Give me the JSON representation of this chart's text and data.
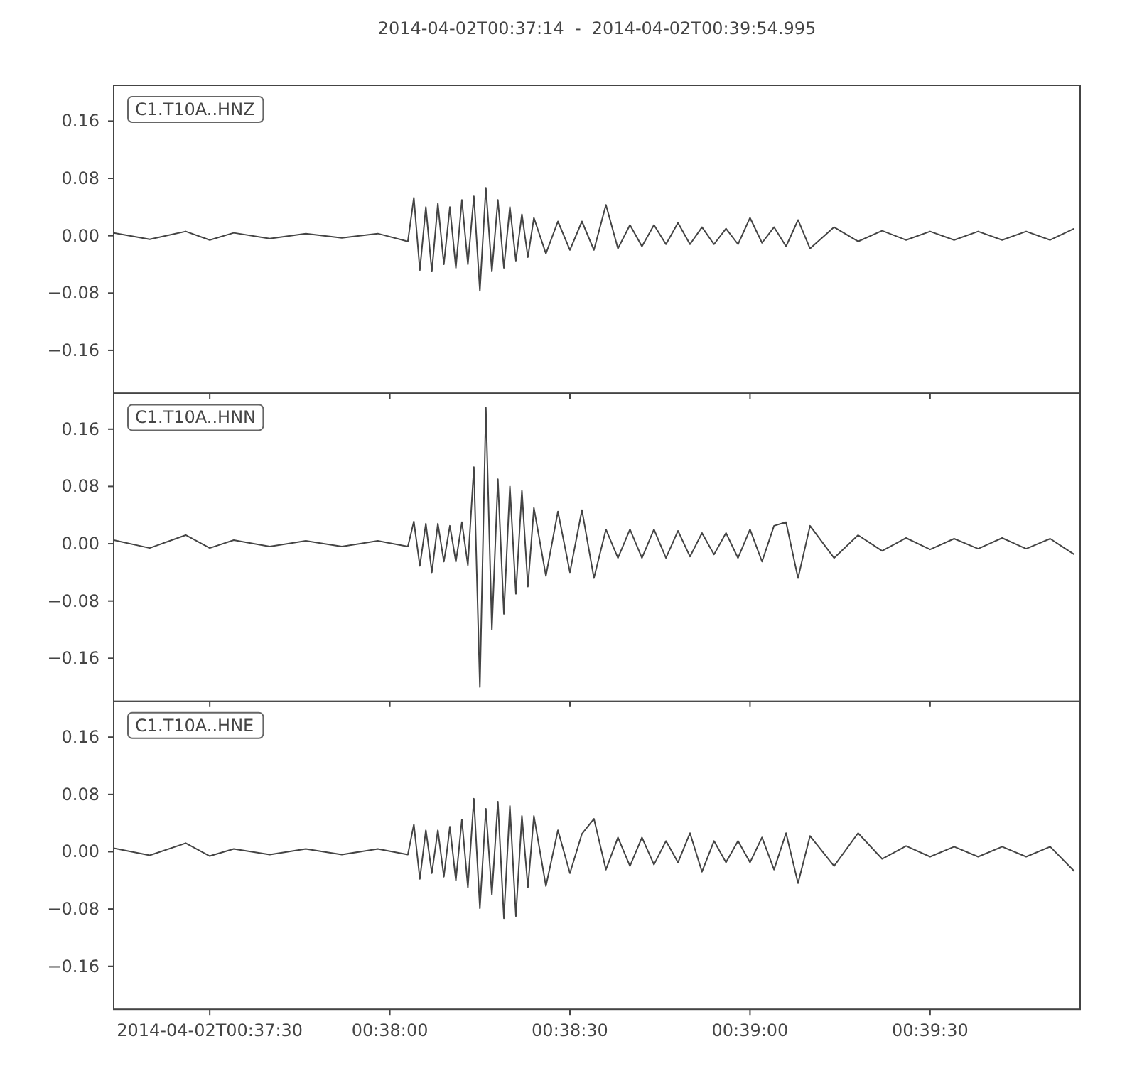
{
  "chart_data": [
    {
      "type": "line",
      "title": "2014-04-02T00:37:14  -  2014-04-02T00:39:54.995",
      "legend": "top left",
      "tick_labels": "y",
      "xlim": [
        "2014-04-02T00:37:14",
        "2014-04-02T00:39:54.995"
      ],
      "xticks": [
        {
          "value": "2014-04-02T00:37:30",
          "label": null
        },
        {
          "value": "2014-04-02T00:38:00",
          "label": null
        },
        {
          "value": "2014-04-02T00:38:30",
          "label": null
        },
        {
          "value": "2014-04-02T00:39:00",
          "label": null
        },
        {
          "value": "2014-04-02T00:39:30",
          "label": null
        }
      ],
      "ylim": [
        -0.22,
        0.21
      ],
      "yticks": [
        {
          "value": -0.16,
          "label": "−0.16"
        },
        {
          "value": -0.08,
          "label": "−0.08"
        },
        {
          "value": 0,
          "label": "0.00"
        },
        {
          "value": 0.08,
          "label": "0.08"
        },
        {
          "value": 0.16,
          "label": "0.16"
        }
      ],
      "x": [
        "2014-04-02T00:37:14",
        "2014-04-02T00:37:20",
        "2014-04-02T00:37:26",
        "2014-04-02T00:37:30",
        "2014-04-02T00:37:34",
        "2014-04-02T00:37:40",
        "2014-04-02T00:37:46",
        "2014-04-02T00:37:52",
        "2014-04-02T00:37:58",
        "2014-04-02T00:38:03",
        "2014-04-02T00:38:04",
        "2014-04-02T00:38:05",
        "2014-04-02T00:38:06",
        "2014-04-02T00:38:07",
        "2014-04-02T00:38:08",
        "2014-04-02T00:38:09",
        "2014-04-02T00:38:10",
        "2014-04-02T00:38:11",
        "2014-04-02T00:38:12",
        "2014-04-02T00:38:13",
        "2014-04-02T00:38:14",
        "2014-04-02T00:38:15",
        "2014-04-02T00:38:16",
        "2014-04-02T00:38:17",
        "2014-04-02T00:38:18",
        "2014-04-02T00:38:19",
        "2014-04-02T00:38:20",
        "2014-04-02T00:38:21",
        "2014-04-02T00:38:22",
        "2014-04-02T00:38:23",
        "2014-04-02T00:38:24",
        "2014-04-02T00:38:26",
        "2014-04-02T00:38:28",
        "2014-04-02T00:38:30",
        "2014-04-02T00:38:32",
        "2014-04-02T00:38:34",
        "2014-04-02T00:38:36",
        "2014-04-02T00:38:38",
        "2014-04-02T00:38:40",
        "2014-04-02T00:38:42",
        "2014-04-02T00:38:44",
        "2014-04-02T00:38:46",
        "2014-04-02T00:38:48",
        "2014-04-02T00:38:50",
        "2014-04-02T00:38:52",
        "2014-04-02T00:38:54",
        "2014-04-02T00:38:56",
        "2014-04-02T00:38:58",
        "2014-04-02T00:39:00",
        "2014-04-02T00:39:02",
        "2014-04-02T00:39:04",
        "2014-04-02T00:39:06",
        "2014-04-02T00:39:08",
        "2014-04-02T00:39:10",
        "2014-04-02T00:39:14",
        "2014-04-02T00:39:18",
        "2014-04-02T00:39:22",
        "2014-04-02T00:39:26",
        "2014-04-02T00:39:30",
        "2014-04-02T00:39:34",
        "2014-04-02T00:39:38",
        "2014-04-02T00:39:42",
        "2014-04-02T00:39:46",
        "2014-04-02T00:39:50",
        "2014-04-02T00:39:54"
      ],
      "series": [
        {
          "name": "C1.T10A..HNZ",
          "color": "#444444",
          "values": [
            0.004,
            -0.005,
            0.006,
            -0.006,
            0.004,
            -0.004,
            0.003,
            -0.003,
            0.003,
            -0.008,
            0.053,
            -0.048,
            0.04,
            -0.05,
            0.045,
            -0.04,
            0.04,
            -0.045,
            0.05,
            -0.04,
            0.055,
            -0.077,
            0.067,
            -0.05,
            0.05,
            -0.045,
            0.04,
            -0.035,
            0.03,
            -0.03,
            0.025,
            -0.025,
            0.02,
            -0.02,
            0.02,
            -0.02,
            0.043,
            -0.018,
            0.015,
            -0.015,
            0.015,
            -0.012,
            0.018,
            -0.012,
            0.012,
            -0.012,
            0.01,
            -0.012,
            0.025,
            -0.01,
            0.012,
            -0.015,
            0.022,
            -0.018,
            0.012,
            -0.008,
            0.007,
            -0.006,
            0.006,
            -0.006,
            0.006,
            -0.006,
            0.006,
            -0.006,
            0.01
          ]
        }
      ]
    },
    {
      "type": "line",
      "legend": "top left",
      "tick_labels": "y",
      "xlim": [
        "2014-04-02T00:37:14",
        "2014-04-02T00:39:54.995"
      ],
      "xticks": [
        {
          "value": "2014-04-02T00:37:30",
          "label": null
        },
        {
          "value": "2014-04-02T00:38:00",
          "label": null
        },
        {
          "value": "2014-04-02T00:38:30",
          "label": null
        },
        {
          "value": "2014-04-02T00:39:00",
          "label": null
        },
        {
          "value": "2014-04-02T00:39:30",
          "label": null
        }
      ],
      "ylim": [
        -0.22,
        0.21
      ],
      "yticks": [
        {
          "value": -0.16,
          "label": "−0.16"
        },
        {
          "value": -0.08,
          "label": "−0.08"
        },
        {
          "value": 0,
          "label": "0.00"
        },
        {
          "value": 0.08,
          "label": "0.08"
        },
        {
          "value": 0.16,
          "label": "0.16"
        }
      ],
      "x": [
        "2014-04-02T00:37:14",
        "2014-04-02T00:37:20",
        "2014-04-02T00:37:26",
        "2014-04-02T00:37:30",
        "2014-04-02T00:37:34",
        "2014-04-02T00:37:40",
        "2014-04-02T00:37:46",
        "2014-04-02T00:37:52",
        "2014-04-02T00:37:58",
        "2014-04-02T00:38:03",
        "2014-04-02T00:38:04",
        "2014-04-02T00:38:05",
        "2014-04-02T00:38:06",
        "2014-04-02T00:38:07",
        "2014-04-02T00:38:08",
        "2014-04-02T00:38:09",
        "2014-04-02T00:38:10",
        "2014-04-02T00:38:11",
        "2014-04-02T00:38:12",
        "2014-04-02T00:38:13",
        "2014-04-02T00:38:14",
        "2014-04-02T00:38:15",
        "2014-04-02T00:38:16",
        "2014-04-02T00:38:17",
        "2014-04-02T00:38:18",
        "2014-04-02T00:38:19",
        "2014-04-02T00:38:20",
        "2014-04-02T00:38:21",
        "2014-04-02T00:38:22",
        "2014-04-02T00:38:23",
        "2014-04-02T00:38:24",
        "2014-04-02T00:38:26",
        "2014-04-02T00:38:28",
        "2014-04-02T00:38:30",
        "2014-04-02T00:38:32",
        "2014-04-02T00:38:34",
        "2014-04-02T00:38:36",
        "2014-04-02T00:38:38",
        "2014-04-02T00:38:40",
        "2014-04-02T00:38:42",
        "2014-04-02T00:38:44",
        "2014-04-02T00:38:46",
        "2014-04-02T00:38:48",
        "2014-04-02T00:38:50",
        "2014-04-02T00:38:52",
        "2014-04-02T00:38:54",
        "2014-04-02T00:38:56",
        "2014-04-02T00:38:58",
        "2014-04-02T00:39:00",
        "2014-04-02T00:39:02",
        "2014-04-02T00:39:04",
        "2014-04-02T00:39:06",
        "2014-04-02T00:39:08",
        "2014-04-02T00:39:10",
        "2014-04-02T00:39:14",
        "2014-04-02T00:39:18",
        "2014-04-02T00:39:22",
        "2014-04-02T00:39:26",
        "2014-04-02T00:39:30",
        "2014-04-02T00:39:34",
        "2014-04-02T00:39:38",
        "2014-04-02T00:39:42",
        "2014-04-02T00:39:46",
        "2014-04-02T00:39:50",
        "2014-04-02T00:39:54"
      ],
      "series": [
        {
          "name": "C1.T10A..HNN",
          "color": "#444444",
          "values": [
            0.005,
            -0.006,
            0.012,
            -0.006,
            0.005,
            -0.004,
            0.004,
            -0.004,
            0.004,
            -0.004,
            0.031,
            -0.031,
            0.028,
            -0.04,
            0.028,
            -0.025,
            0.025,
            -0.025,
            0.03,
            -0.03,
            0.107,
            -0.2,
            0.19,
            -0.12,
            0.09,
            -0.098,
            0.08,
            -0.07,
            0.074,
            -0.06,
            0.05,
            -0.045,
            0.045,
            -0.04,
            0.047,
            -0.048,
            0.02,
            -0.02,
            0.02,
            -0.02,
            0.02,
            -0.02,
            0.018,
            -0.018,
            0.015,
            -0.015,
            0.015,
            -0.02,
            0.02,
            -0.025,
            0.025,
            0.03,
            -0.048,
            0.025,
            -0.02,
            0.012,
            -0.01,
            0.008,
            -0.008,
            0.007,
            -0.007,
            0.008,
            -0.007,
            0.007,
            -0.015
          ]
        }
      ]
    },
    {
      "type": "line",
      "legend": "top left",
      "xlim": [
        "2014-04-02T00:37:14",
        "2014-04-02T00:39:54.995"
      ],
      "xticks": [
        {
          "value": "2014-04-02T00:37:30",
          "label": "2014-04-02T00:37:30"
        },
        {
          "value": "2014-04-02T00:38:00",
          "label": "00:38:00"
        },
        {
          "value": "2014-04-02T00:38:30",
          "label": "00:38:30"
        },
        {
          "value": "2014-04-02T00:39:00",
          "label": "00:39:00"
        },
        {
          "value": "2014-04-02T00:39:30",
          "label": "00:39:30"
        }
      ],
      "ylim": [
        -0.22,
        0.21
      ],
      "yticks": [
        {
          "value": -0.16,
          "label": "−0.16"
        },
        {
          "value": -0.08,
          "label": "−0.08"
        },
        {
          "value": 0,
          "label": "0.00"
        },
        {
          "value": 0.08,
          "label": "0.08"
        },
        {
          "value": 0.16,
          "label": "0.16"
        }
      ],
      "x": [
        "2014-04-02T00:37:14",
        "2014-04-02T00:37:20",
        "2014-04-02T00:37:26",
        "2014-04-02T00:37:30",
        "2014-04-02T00:37:34",
        "2014-04-02T00:37:40",
        "2014-04-02T00:37:46",
        "2014-04-02T00:37:52",
        "2014-04-02T00:37:58",
        "2014-04-02T00:38:03",
        "2014-04-02T00:38:04",
        "2014-04-02T00:38:05",
        "2014-04-02T00:38:06",
        "2014-04-02T00:38:07",
        "2014-04-02T00:38:08",
        "2014-04-02T00:38:09",
        "2014-04-02T00:38:10",
        "2014-04-02T00:38:11",
        "2014-04-02T00:38:12",
        "2014-04-02T00:38:13",
        "2014-04-02T00:38:14",
        "2014-04-02T00:38:15",
        "2014-04-02T00:38:16",
        "2014-04-02T00:38:17",
        "2014-04-02T00:38:18",
        "2014-04-02T00:38:19",
        "2014-04-02T00:38:20",
        "2014-04-02T00:38:21",
        "2014-04-02T00:38:22",
        "2014-04-02T00:38:23",
        "2014-04-02T00:38:24",
        "2014-04-02T00:38:26",
        "2014-04-02T00:38:28",
        "2014-04-02T00:38:30",
        "2014-04-02T00:38:32",
        "2014-04-02T00:38:34",
        "2014-04-02T00:38:36",
        "2014-04-02T00:38:38",
        "2014-04-02T00:38:40",
        "2014-04-02T00:38:42",
        "2014-04-02T00:38:44",
        "2014-04-02T00:38:46",
        "2014-04-02T00:38:48",
        "2014-04-02T00:38:50",
        "2014-04-02T00:38:52",
        "2014-04-02T00:38:54",
        "2014-04-02T00:38:56",
        "2014-04-02T00:38:58",
        "2014-04-02T00:39:00",
        "2014-04-02T00:39:02",
        "2014-04-02T00:39:04",
        "2014-04-02T00:39:06",
        "2014-04-02T00:39:08",
        "2014-04-02T00:39:10",
        "2014-04-02T00:39:14",
        "2014-04-02T00:39:18",
        "2014-04-02T00:39:22",
        "2014-04-02T00:39:26",
        "2014-04-02T00:39:30",
        "2014-04-02T00:39:34",
        "2014-04-02T00:39:38",
        "2014-04-02T00:39:42",
        "2014-04-02T00:39:46",
        "2014-04-02T00:39:50",
        "2014-04-02T00:39:54"
      ],
      "series": [
        {
          "name": "C1.T10A..HNE",
          "color": "#444444",
          "values": [
            0.005,
            -0.005,
            0.012,
            -0.006,
            0.004,
            -0.004,
            0.004,
            -0.004,
            0.004,
            -0.004,
            0.038,
            -0.038,
            0.03,
            -0.03,
            0.03,
            -0.035,
            0.035,
            -0.04,
            0.045,
            -0.05,
            0.074,
            -0.079,
            0.06,
            -0.06,
            0.07,
            -0.093,
            0.064,
            -0.09,
            0.05,
            -0.05,
            0.05,
            -0.048,
            0.03,
            -0.03,
            0.025,
            0.046,
            -0.025,
            0.02,
            -0.02,
            0.02,
            -0.018,
            0.015,
            -0.015,
            0.026,
            -0.028,
            0.015,
            -0.015,
            0.015,
            -0.015,
            0.02,
            -0.025,
            0.026,
            -0.044,
            0.022,
            -0.02,
            0.026,
            -0.01,
            0.008,
            -0.007,
            0.007,
            -0.007,
            0.007,
            -0.007,
            0.007,
            -0.027
          ]
        }
      ]
    }
  ]
}
